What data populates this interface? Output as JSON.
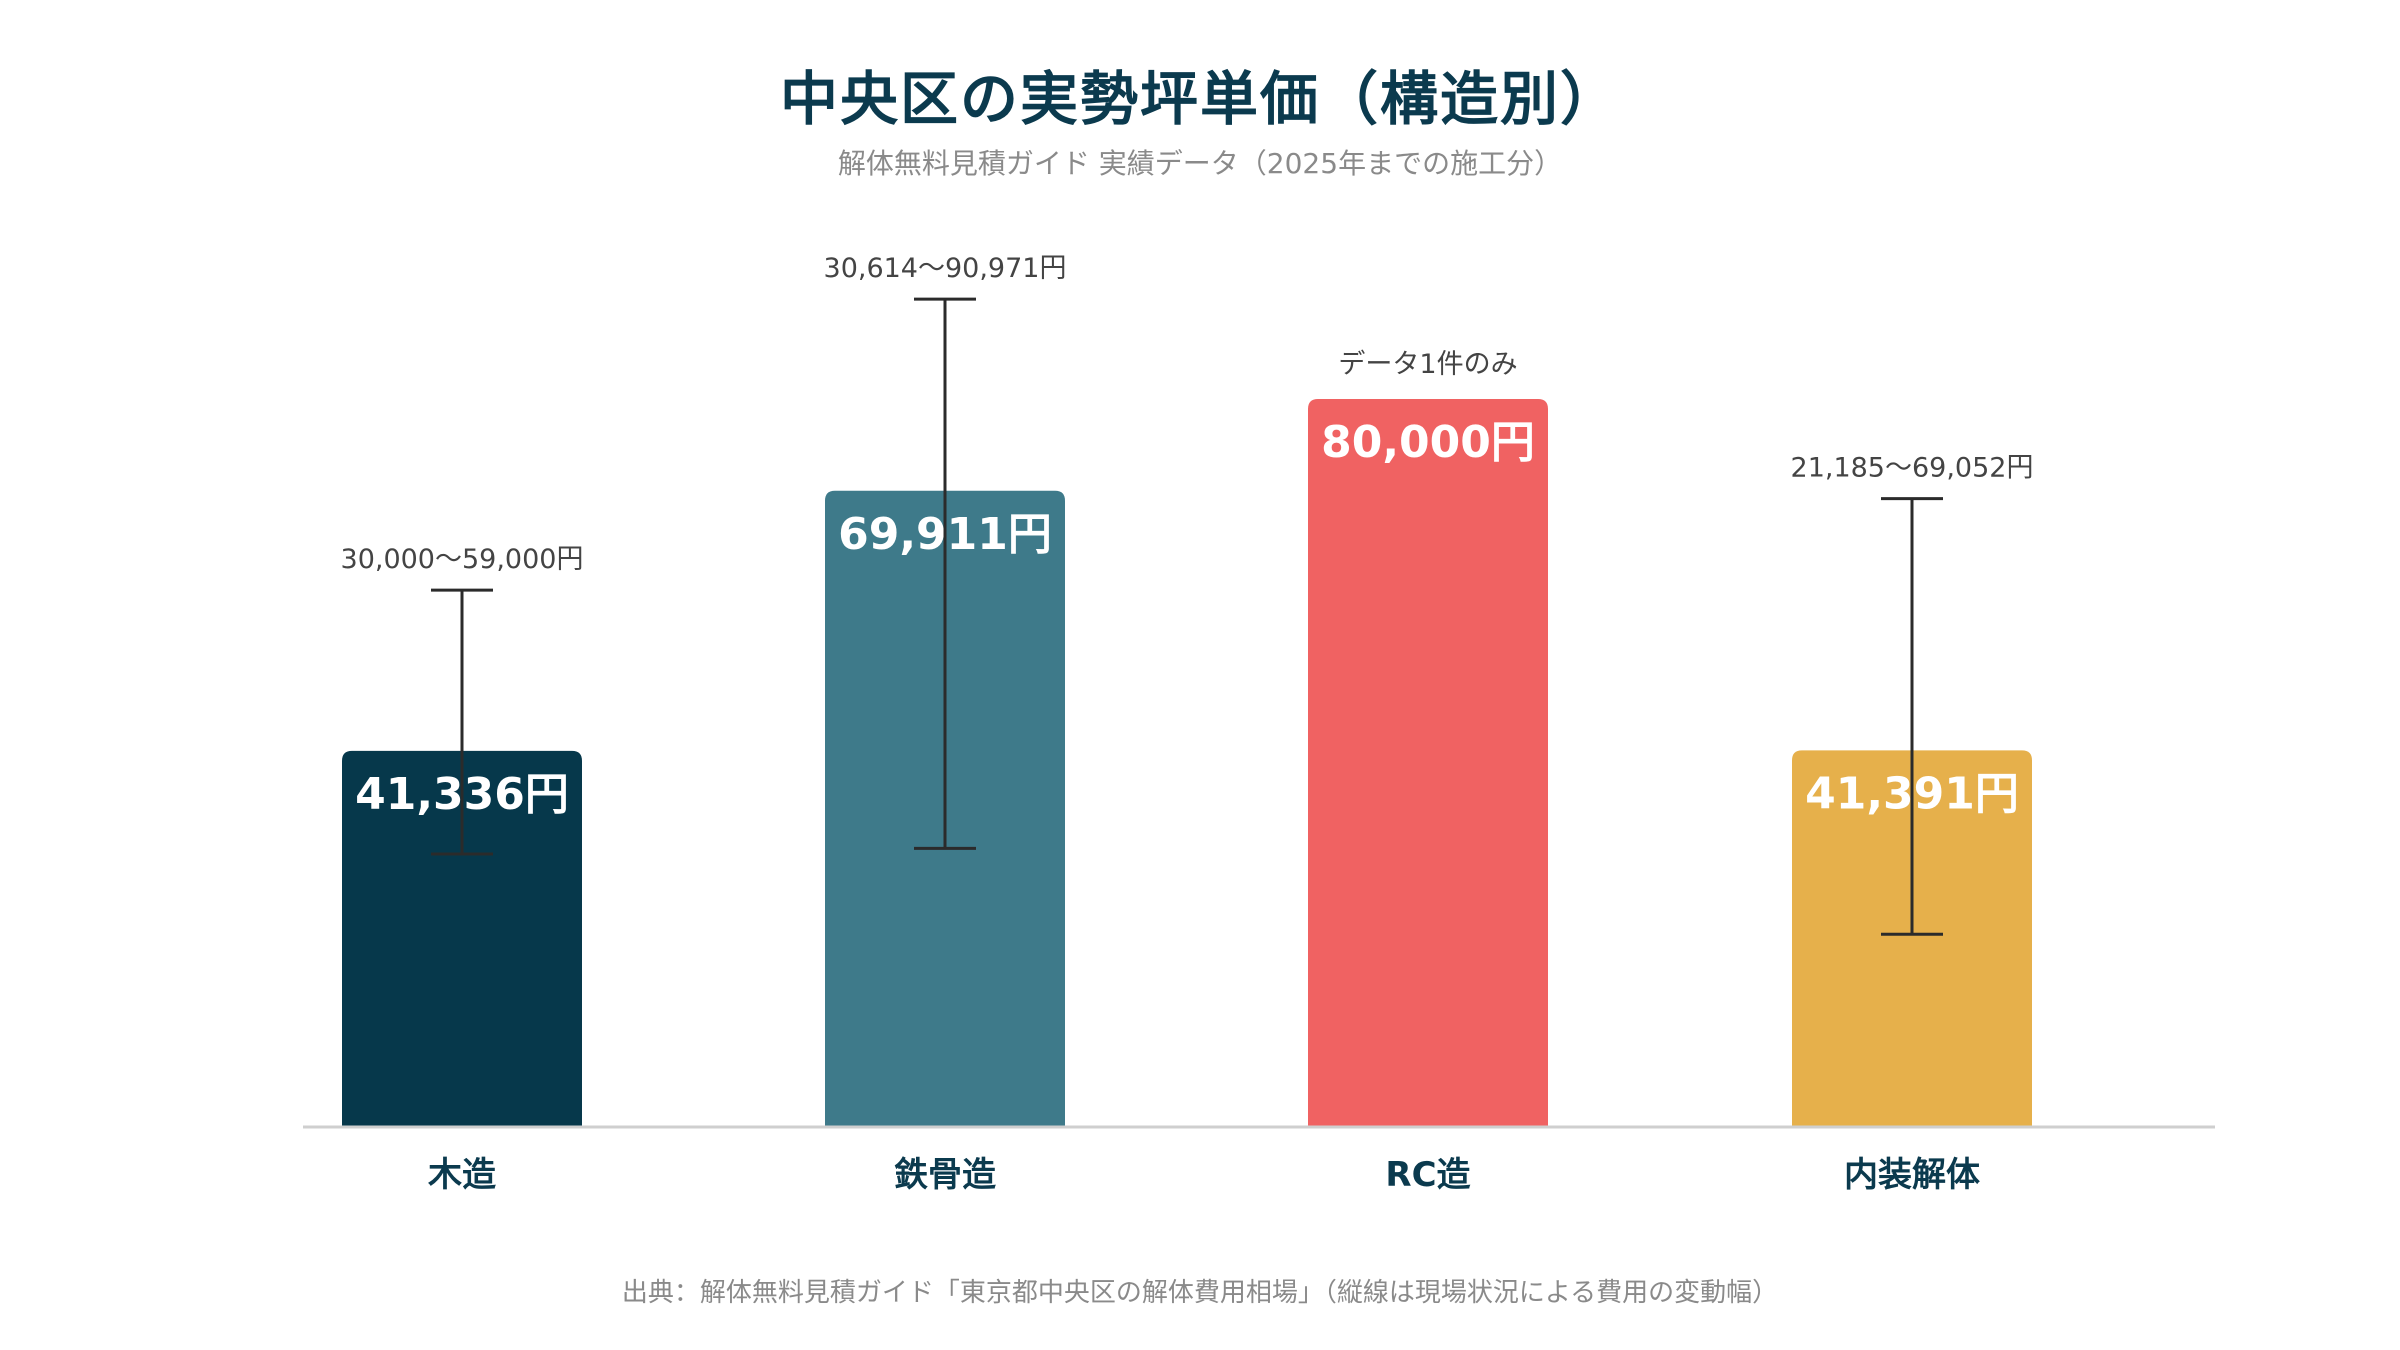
{
  "title": "中央区の実勢坪単価（構造別）",
  "subtitle": "解体無料見積ガイド 実績データ（2025年までの施工分）",
  "source": "出典：解体無料見積ガイド「東京都中央区の解体費用相場」（縦線は現場状況による費用の変動幅）",
  "chart_data": {
    "type": "bar",
    "categories": [
      "木造",
      "鉄骨造",
      "RC造",
      "内装解体"
    ],
    "values": [
      41336,
      69911,
      80000,
      41391
    ],
    "value_labels": [
      "41,336円",
      "69,911円",
      "80,000円",
      "41,391円"
    ],
    "ranges": [
      {
        "low": 30000,
        "high": 59000,
        "label": "30,000〜59,000円"
      },
      {
        "low": 30614,
        "high": 90971,
        "label": "30,614〜90,971円"
      },
      null,
      {
        "low": 21185,
        "high": 69052,
        "label": "21,185〜69,052円"
      }
    ],
    "annotations": [
      "",
      "",
      "データ1件のみ",
      ""
    ],
    "colors": [
      "#06384b",
      "#3e7a8a",
      "#f06262",
      "#e6b04b"
    ],
    "ylim": [
      0,
      100000
    ],
    "grid": false,
    "legend": "none"
  }
}
